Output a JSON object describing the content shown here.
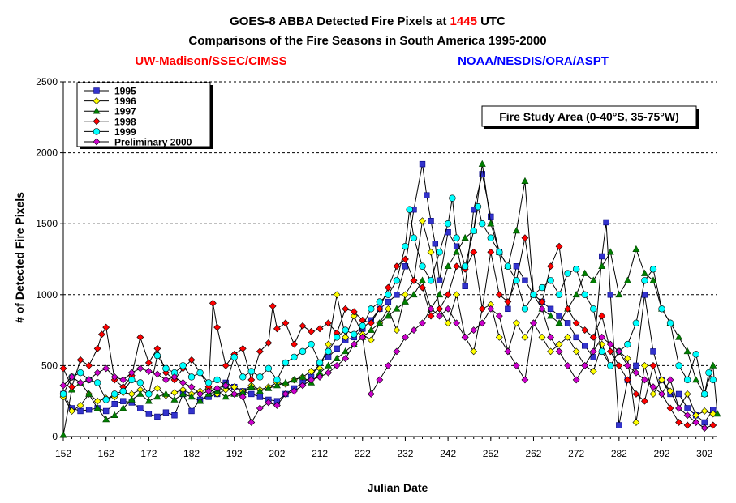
{
  "chart_data": {
    "type": "line",
    "title_prefix": "GOES-8 ABBA Detected Fire Pixels at ",
    "title_highlight": "1445",
    "title_suffix": " UTC",
    "subtitle": "Comparisons of the Fire Seasons in South America 1995-2000",
    "credit_left": "UW-Madison/SSEC/CIMSS",
    "credit_right": "NOAA/NESDIS/ORA/ASPT",
    "annotation": "Fire Study Area (0-40°S, 35-75°W)",
    "xlabel": "Julian Date",
    "ylabel": "# of Detected Fire Pixels",
    "xlim": [
      152,
      305
    ],
    "ylim": [
      0,
      2500
    ],
    "xticks": [
      152,
      162,
      172,
      182,
      192,
      202,
      212,
      222,
      232,
      242,
      252,
      262,
      272,
      282,
      292,
      302
    ],
    "yticks": [
      0,
      500,
      1000,
      1500,
      2000,
      2500
    ],
    "grid": "horizontal dashed",
    "legend_position": "top-left",
    "colors": {
      "title_highlight": "#ff0000",
      "credit_left": "#ff0000",
      "credit_right": "#0000ff"
    },
    "series": [
      {
        "name": "1995",
        "color": "#3333cc",
        "line": "#000000",
        "marker": "square",
        "x": [
          152,
          154,
          156,
          158,
          160,
          162,
          164,
          166,
          168,
          170,
          172,
          174,
          176,
          178,
          180,
          182,
          184,
          186,
          188,
          190,
          192,
          194,
          196,
          198,
          200,
          202,
          204,
          206,
          208,
          210,
          212,
          214,
          216,
          218,
          220,
          222,
          224,
          226,
          228,
          230,
          232,
          234,
          236,
          237,
          238,
          239,
          240,
          242,
          244,
          246,
          248,
          250,
          252,
          254,
          256,
          258,
          260,
          262,
          264,
          266,
          268,
          270,
          272,
          274,
          276,
          278,
          279,
          280,
          282,
          284,
          286,
          288,
          290,
          292,
          294,
          296,
          298,
          300,
          302,
          304
        ],
        "values": [
          300,
          200,
          180,
          190,
          200,
          180,
          230,
          250,
          240,
          200,
          160,
          140,
          170,
          150,
          300,
          180,
          260,
          280,
          300,
          380,
          350,
          320,
          300,
          280,
          260,
          250,
          300,
          340,
          380,
          420,
          520,
          560,
          620,
          680,
          700,
          760,
          820,
          900,
          950,
          1000,
          1200,
          1600,
          1920,
          1700,
          1520,
          1360,
          1100,
          1440,
          1340,
          1060,
          1600,
          1850,
          1550,
          1300,
          900,
          1200,
          1100,
          1000,
          950,
          900,
          850,
          800,
          700,
          640,
          560,
          1270,
          1510,
          1000,
          80,
          400,
          500,
          1000,
          600,
          400,
          300,
          300,
          200,
          150,
          100,
          190
        ]
      },
      {
        "name": "1996",
        "color": "#ffff00",
        "line": "#000000",
        "marker": "diamond",
        "x": [
          152,
          154,
          156,
          158,
          160,
          162,
          164,
          166,
          168,
          170,
          172,
          174,
          176,
          178,
          180,
          182,
          184,
          186,
          188,
          190,
          192,
          194,
          196,
          198,
          200,
          202,
          204,
          206,
          208,
          210,
          212,
          214,
          216,
          218,
          220,
          222,
          224,
          226,
          228,
          230,
          232,
          234,
          236,
          238,
          240,
          242,
          244,
          246,
          248,
          250,
          252,
          254,
          256,
          258,
          260,
          262,
          264,
          266,
          268,
          270,
          272,
          274,
          276,
          278,
          280,
          282,
          284,
          286,
          288,
          290,
          292,
          294,
          296,
          298,
          300,
          302,
          304
        ],
        "values": [
          280,
          180,
          220,
          300,
          250,
          270,
          280,
          310,
          300,
          330,
          300,
          340,
          290,
          310,
          330,
          300,
          320,
          340,
          300,
          330,
          350,
          320,
          360,
          330,
          350,
          380,
          370,
          400,
          420,
          460,
          480,
          650,
          1000,
          700,
          850,
          720,
          680,
          800,
          900,
          750,
          1000,
          1100,
          1520,
          1300,
          900,
          800,
          1000,
          700,
          600,
          900,
          930,
          700,
          600,
          800,
          700,
          800,
          700,
          600,
          650,
          700,
          600,
          500,
          460,
          650,
          500,
          600,
          550,
          100,
          500,
          300,
          400,
          320,
          200,
          300,
          150,
          180,
          160
        ]
      },
      {
        "name": "1997",
        "color": "#008000",
        "line": "#000000",
        "marker": "triangle",
        "x": [
          152,
          154,
          156,
          158,
          160,
          162,
          164,
          166,
          168,
          170,
          172,
          174,
          176,
          178,
          180,
          182,
          184,
          186,
          188,
          190,
          192,
          194,
          196,
          198,
          200,
          202,
          204,
          206,
          208,
          210,
          212,
          214,
          216,
          218,
          220,
          222,
          224,
          226,
          228,
          230,
          232,
          234,
          236,
          238,
          240,
          242,
          244,
          246,
          248,
          250,
          252,
          254,
          256,
          258,
          260,
          262,
          264,
          266,
          268,
          270,
          272,
          274,
          276,
          278,
          280,
          282,
          284,
          286,
          288,
          290,
          292,
          294,
          296,
          298,
          300,
          302,
          304,
          305
        ],
        "values": [
          10,
          330,
          380,
          300,
          200,
          120,
          150,
          200,
          260,
          300,
          250,
          280,
          300,
          260,
          300,
          280,
          250,
          300,
          320,
          280,
          300,
          310,
          350,
          320,
          340,
          360,
          380,
          400,
          420,
          380,
          450,
          500,
          550,
          600,
          650,
          700,
          750,
          800,
          850,
          900,
          950,
          1000,
          1100,
          900,
          1000,
          1200,
          1300,
          1400,
          1450,
          1920,
          1500,
          1300,
          1200,
          1450,
          1800,
          1000,
          900,
          850,
          800,
          900,
          1000,
          1150,
          1100,
          1200,
          1300,
          1000,
          1100,
          1320,
          1150,
          1100,
          900,
          800,
          700,
          600,
          400,
          300,
          500,
          160
        ]
      },
      {
        "name": "1998",
        "color": "#ff0000",
        "line": "#000000",
        "marker": "diamond",
        "x": [
          152,
          154,
          156,
          158,
          160,
          161,
          162,
          164,
          166,
          168,
          170,
          172,
          174,
          176,
          178,
          180,
          182,
          184,
          186,
          187,
          188,
          190,
          192,
          194,
          196,
          198,
          200,
          201,
          202,
          204,
          206,
          208,
          210,
          212,
          214,
          216,
          218,
          220,
          222,
          224,
          226,
          228,
          230,
          232,
          234,
          236,
          238,
          240,
          242,
          244,
          246,
          248,
          250,
          252,
          254,
          256,
          258,
          260,
          262,
          264,
          266,
          268,
          270,
          272,
          274,
          276,
          278,
          280,
          282,
          284,
          286,
          288,
          290,
          292,
          294,
          296,
          298,
          300,
          302,
          304
        ],
        "values": [
          480,
          350,
          540,
          500,
          620,
          720,
          770,
          400,
          350,
          430,
          700,
          520,
          620,
          450,
          400,
          480,
          540,
          450,
          350,
          940,
          770,
          500,
          580,
          620,
          400,
          600,
          660,
          920,
          760,
          800,
          650,
          780,
          740,
          760,
          800,
          730,
          900,
          880,
          820,
          800,
          900,
          1050,
          1200,
          1250,
          1100,
          1050,
          850,
          900,
          1000,
          1200,
          1180,
          1300,
          900,
          1300,
          1000,
          950,
          1100,
          1400,
          1000,
          950,
          1200,
          1340,
          900,
          800,
          750,
          700,
          850,
          600,
          500,
          400,
          300,
          250,
          500,
          300,
          200,
          100,
          80,
          100,
          60,
          80
        ]
      },
      {
        "name": "1999",
        "color": "#00ffff",
        "line": "#000000",
        "marker": "circle",
        "x": [
          152,
          154,
          156,
          158,
          160,
          162,
          164,
          166,
          168,
          170,
          172,
          174,
          176,
          178,
          180,
          182,
          184,
          186,
          188,
          190,
          192,
          194,
          196,
          198,
          200,
          202,
          204,
          206,
          208,
          210,
          212,
          214,
          216,
          218,
          220,
          222,
          224,
          226,
          228,
          230,
          232,
          233,
          234,
          236,
          238,
          240,
          242,
          243,
          244,
          246,
          248,
          249,
          250,
          252,
          254,
          256,
          258,
          260,
          262,
          264,
          266,
          268,
          270,
          272,
          274,
          276,
          278,
          280,
          282,
          284,
          286,
          288,
          290,
          292,
          294,
          296,
          298,
          300,
          302,
          303,
          304
        ],
        "values": [
          300,
          420,
          450,
          400,
          380,
          260,
          300,
          320,
          400,
          380,
          300,
          570,
          480,
          450,
          500,
          420,
          450,
          380,
          400,
          360,
          560,
          420,
          460,
          420,
          480,
          400,
          520,
          560,
          600,
          650,
          520,
          600,
          700,
          750,
          720,
          780,
          900,
          950,
          1000,
          1100,
          1340,
          1600,
          1400,
          1200,
          1100,
          1300,
          1500,
          1680,
          1400,
          1200,
          1450,
          1620,
          1500,
          1400,
          1300,
          1200,
          1100,
          900,
          1000,
          1050,
          1100,
          1000,
          1150,
          1180,
          1000,
          900,
          600,
          500,
          600,
          650,
          800,
          1100,
          1180,
          900,
          800,
          500,
          400,
          580,
          300,
          450,
          400
        ]
      },
      {
        "name": "Preliminary 2000",
        "color": "#cc00cc",
        "line": "#000000",
        "marker": "diamond",
        "x": [
          152,
          154,
          156,
          158,
          160,
          162,
          164,
          166,
          168,
          170,
          172,
          174,
          176,
          178,
          180,
          182,
          184,
          186,
          188,
          190,
          192,
          194,
          196,
          198,
          200,
          202,
          204,
          206,
          208,
          210,
          212,
          214,
          216,
          218,
          220,
          222,
          224,
          226,
          228,
          230,
          232,
          234,
          236,
          238,
          240,
          242,
          244,
          246,
          248,
          250,
          252,
          254,
          256,
          258,
          260,
          262,
          264,
          266,
          268,
          270,
          272,
          274,
          276,
          278,
          280,
          282,
          284,
          286,
          288,
          290,
          292,
          294,
          296,
          298,
          300,
          302
        ],
        "values": [
          360,
          420,
          380,
          400,
          450,
          480,
          420,
          400,
          450,
          480,
          460,
          440,
          400,
          420,
          380,
          350,
          300,
          320,
          340,
          360,
          300,
          280,
          100,
          200,
          240,
          220,
          300,
          320,
          360,
          400,
          420,
          450,
          500,
          550,
          650,
          700,
          300,
          400,
          500,
          600,
          700,
          750,
          800,
          900,
          850,
          900,
          800,
          700,
          750,
          800,
          900,
          850,
          600,
          500,
          400,
          800,
          900,
          700,
          600,
          500,
          400,
          500,
          600,
          700,
          650,
          600,
          500,
          450,
          400,
          350,
          300,
          400,
          200,
          150,
          100,
          60
        ]
      }
    ]
  }
}
